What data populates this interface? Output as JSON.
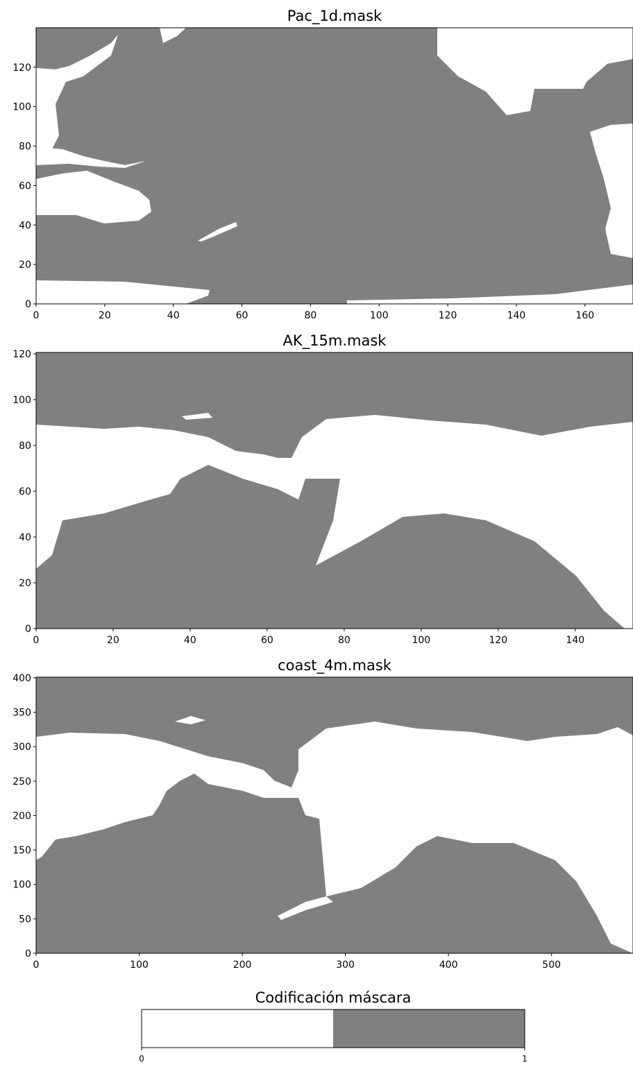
{
  "chart_data": [
    {
      "type": "mask",
      "title": "Pac_1d.mask",
      "colors": [
        "#ffffff",
        "#808080"
      ],
      "xlim": [
        0,
        174
      ],
      "ylim": [
        0,
        140
      ],
      "xticks": [
        0,
        20,
        40,
        60,
        80,
        100,
        120,
        140,
        160
      ],
      "yticks": [
        0,
        20,
        40,
        60,
        80,
        100,
        120
      ]
    },
    {
      "type": "mask",
      "title": "AK_15m.mask",
      "colors": [
        "#ffffff",
        "#808080"
      ],
      "xlim": [
        0,
        155
      ],
      "ylim": [
        0,
        120.6
      ],
      "xticks": [
        0,
        20,
        40,
        60,
        80,
        100,
        120,
        140
      ],
      "yticks": [
        0,
        20,
        40,
        60,
        80,
        100,
        120
      ]
    },
    {
      "type": "mask",
      "title": "coast_4m.mask",
      "colors": [
        "#ffffff",
        "#808080"
      ],
      "xlim": [
        0,
        579
      ],
      "ylim": [
        0,
        401
      ],
      "xticks": [
        0,
        100,
        200,
        300,
        400,
        500
      ],
      "yticks": [
        0,
        50,
        100,
        150,
        200,
        250,
        300,
        350,
        400
      ]
    },
    {
      "type": "colorbar",
      "title": "Codificación máscara",
      "colors": [
        "#ffffff",
        "#808080"
      ],
      "xlim": [
        0,
        1
      ],
      "xticks": [
        0,
        1
      ]
    }
  ]
}
